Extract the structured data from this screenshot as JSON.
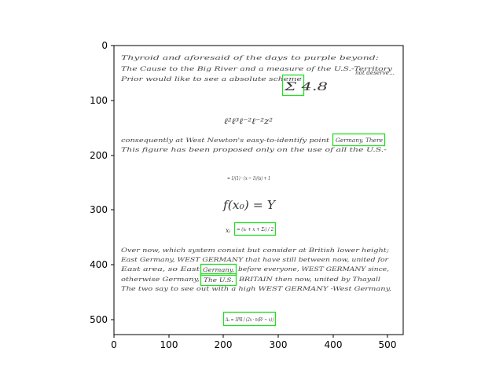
{
  "axes": {
    "x_ticks": [
      "0",
      "100",
      "200",
      "300",
      "400",
      "500"
    ],
    "y_ticks": [
      "0",
      "100",
      "200",
      "300",
      "400",
      "500"
    ],
    "x_range": [
      0,
      528
    ],
    "y_range": [
      528,
      0
    ]
  },
  "document": {
    "para1_line1": "Thyroid and aforesaid of the days to purple beyond:",
    "para1_line2": "The Cause to the Big River and a measure of the U.S.-Territory",
    "para1_line3": "Prior would like to see a absolute scheme",
    "box1_text": "Σ 4.8",
    "para1_note": "not deserve...",
    "eq1": "ℓ²ℓ³ℓ⁻²ℓ⁻²z²",
    "para2_line1": "consequently at West Newton's easy-to-identify point",
    "box2_text": "Germany, There",
    "para2_line2": "This figure has been proposed only on the use of all the U.S.-",
    "eq2": "= 1/(1) · (x − 1)/(s) + 1",
    "eq3": "f(x₀) = Y",
    "eq4_prefix": "xᵢ",
    "box3_text": "= (xᵢ + x + Σᵢ) / 2",
    "para3_line1": "Over now, which system consist but consider at British lower height;",
    "para3_line2": "East Germany, WEST GERMANY that have still between now, united for",
    "para3_line3": "East area, so East",
    "box4_text": "Germany,",
    "para3_line3_end": "before everyone, WEST GERMANY since,",
    "para3_line4": "otherwise Germany,",
    "box5_text": "The U.S.",
    "para3_line4_end": "BRITAIN then now, united by Thayall",
    "para3_line5": "The two say to see out with a high WEST GERMANY -West Germany,",
    "box6_text": "Aₑ = 1PR / (2x · n(R² − x))"
  }
}
